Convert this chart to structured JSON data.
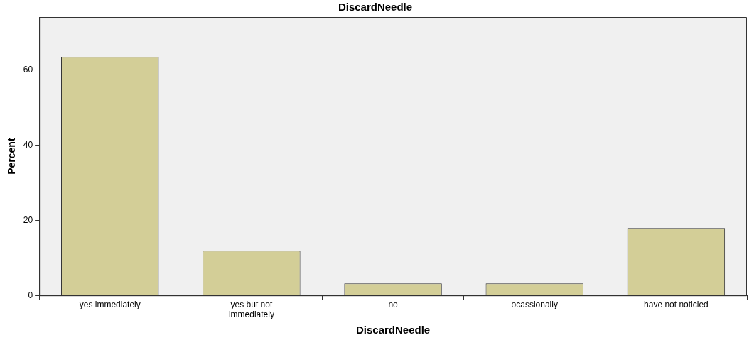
{
  "chart_data": {
    "type": "bar",
    "title": "DiscardNeedle",
    "xlabel": "DiscardNeedle",
    "ylabel": "Percent",
    "categories": [
      "yes immediately",
      "yes but not immediately",
      "no",
      "ocassionally",
      "have not noticied"
    ],
    "values": [
      63.4,
      11.9,
      3.2,
      3.2,
      17.9
    ],
    "color": "#d3ce97",
    "ylim": [
      0,
      74
    ],
    "yticks": [
      0,
      20,
      40,
      60
    ],
    "grid": false,
    "legend": false
  }
}
